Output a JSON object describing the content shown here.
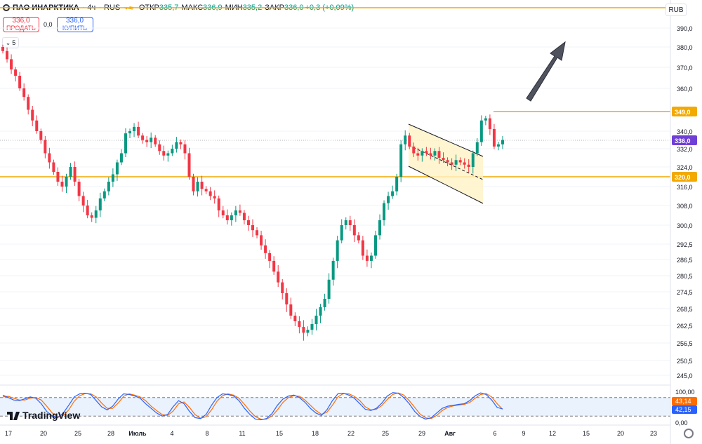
{
  "header": {
    "symbol": "ПАО ИНАРКТИКА",
    "interval": "4ч",
    "exchange": "RUS",
    "sep1": "·",
    "sep2": "·",
    "ohlc": [
      {
        "label": "ОТКР",
        "value": "335,7"
      },
      {
        "label": "МАКС",
        "value": "336,9"
      },
      {
        "label": "МИН",
        "value": "335,2"
      },
      {
        "label": "ЗАКР",
        "value": "336,0"
      },
      {
        "label": "",
        "value": "+0,3 (+0,09%)"
      }
    ]
  },
  "trade": {
    "sell_price": "336,0",
    "sell_label": "ПРОДАТЬ",
    "spread": "0,0",
    "buy_price": "336,0",
    "buy_label": "КУПИТЬ"
  },
  "collapse_label": "5",
  "currency_button": "RUB",
  "logo_text": "TradingView",
  "colors": {
    "up": "#089981",
    "down": "#f23645",
    "level": "#f2a900",
    "channel_fill": "#fff3c4",
    "stoch_k": "#2962ff",
    "stoch_d": "#ff6d00",
    "last_price_bg": "#6f3ed6"
  },
  "chart_data": {
    "type": "candlestick",
    "title": "",
    "y_axis": {
      "ticks": [
        "390,0",
        "380,0",
        "370,0",
        "360,0",
        "340,0",
        "332,0",
        "324,0",
        "316,0",
        "308,0",
        "300,0",
        "292,5",
        "286,5",
        "280,5",
        "274,5",
        "268,5",
        "262,5",
        "256,5",
        "250,5",
        "245,0"
      ],
      "range": [
        244,
        396
      ]
    },
    "x_axis": {
      "ticks": [
        "17",
        "20",
        "25",
        "28",
        "Июль",
        "4",
        "8",
        "11",
        "15",
        "18",
        "22",
        "25",
        "29",
        "Авг",
        "6",
        "9",
        "12",
        "15",
        "20",
        "23"
      ]
    },
    "price_labels": {
      "resistance": "349,0",
      "last": "336,0",
      "support": "320,0"
    },
    "levels": [
      {
        "name": "top line",
        "price": 395.5
      },
      {
        "name": "resistance",
        "price": 349.0
      },
      {
        "name": "support",
        "price": 320.0
      }
    ],
    "series": [
      {
        "name": "",
        "values": [
          378,
          374,
          369,
          366,
          360,
          356,
          350,
          345,
          340,
          336,
          330,
          326,
          322,
          318,
          316,
          320,
          324,
          318,
          312,
          308,
          304,
          303,
          306,
          311,
          314,
          318,
          321,
          326,
          330,
          339,
          340,
          342,
          338,
          336,
          335,
          337,
          334,
          331,
          329,
          330,
          332,
          335,
          334,
          330,
          320,
          314,
          318,
          315,
          314,
          312,
          311,
          306,
          304,
          302,
          304,
          306,
          305,
          302,
          300,
          298,
          296,
          292,
          289,
          286,
          282,
          278,
          274,
          270,
          266,
          264,
          262,
          260,
          261,
          263,
          266,
          269,
          272,
          279,
          286,
          294,
          300,
          302,
          300,
          296,
          294,
          288,
          286,
          288,
          296,
          302,
          309,
          312,
          314,
          320,
          334,
          338,
          333,
          330,
          329,
          331,
          330,
          329,
          331,
          328,
          327,
          326,
          325,
          327,
          326,
          325,
          324,
          330,
          335,
          345,
          346,
          341,
          333,
          334,
          336
        ]
      }
    ],
    "channel": {
      "type": "descending parallel channel",
      "from": "27",
      "to": "Авг"
    },
    "oscillator": {
      "name": "Stochastic",
      "ticks": [
        "100,00",
        "0,00"
      ],
      "k_value": "43,14",
      "d_value": "42,15",
      "k": [
        88,
        80,
        72,
        70,
        76,
        82,
        78,
        60,
        35,
        20,
        15,
        30,
        55,
        82,
        92,
        94,
        90,
        70,
        50,
        40,
        52,
        75,
        92,
        90,
        85,
        78,
        60,
        45,
        30,
        20,
        25,
        50,
        70,
        60,
        35,
        15,
        12,
        25,
        55,
        80,
        92,
        90,
        85,
        70,
        45,
        25,
        10,
        8,
        12,
        28,
        55,
        75,
        85,
        88,
        80,
        65,
        45,
        30,
        22,
        40,
        70,
        92,
        94,
        88,
        78,
        60,
        42,
        38,
        45,
        62,
        85,
        96,
        94,
        80,
        60,
        35,
        18,
        10,
        15,
        30,
        45,
        52,
        55,
        58,
        60,
        70,
        86,
        95,
        90,
        72,
        48,
        43
      ],
      "d": [
        82,
        84,
        78,
        72,
        72,
        78,
        80,
        72,
        52,
        30,
        18,
        22,
        40,
        68,
        86,
        93,
        92,
        82,
        62,
        45,
        45,
        62,
        84,
        92,
        88,
        82,
        70,
        52,
        38,
        25,
        22,
        36,
        60,
        66,
        48,
        25,
        13,
        18,
        40,
        68,
        86,
        92,
        88,
        78,
        58,
        36,
        18,
        10,
        10,
        20,
        40,
        64,
        80,
        86,
        84,
        72,
        55,
        38,
        26,
        32,
        55,
        82,
        93,
        92,
        84,
        70,
        50,
        40,
        42,
        54,
        74,
        90,
        95,
        88,
        70,
        48,
        26,
        14,
        12,
        22,
        38,
        48,
        53,
        56,
        58,
        64,
        78,
        90,
        93,
        82,
        60,
        42
      ]
    }
  }
}
